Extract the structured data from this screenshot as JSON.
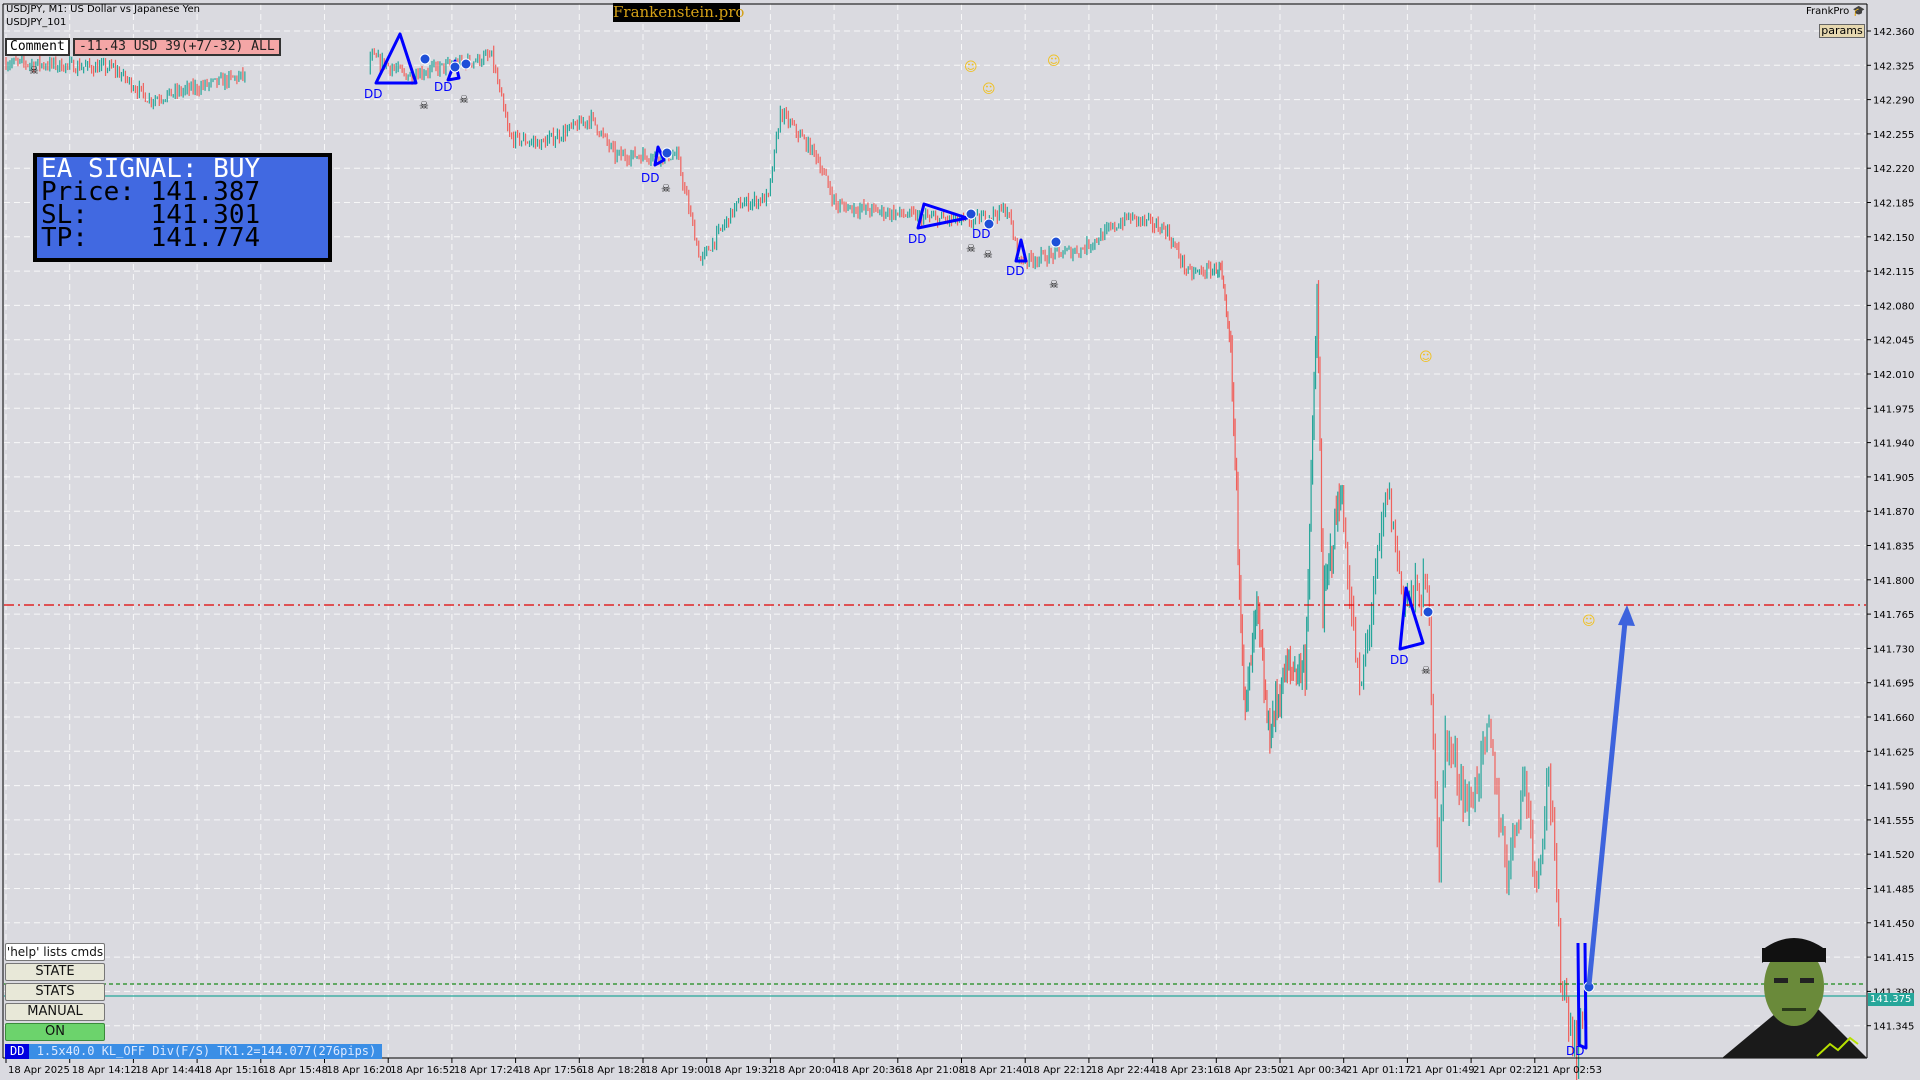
{
  "window": {
    "title": "USDJPY, M1:  US Dollar vs Japanese Yen",
    "indicator": "USDJPY_101"
  },
  "comment": {
    "label": "Comment",
    "pnl": "-11.43 USD 39(+7/-32) ALL"
  },
  "signal": {
    "heading": "EA SIGNAL: BUY",
    "price_line": "Price: 141.387",
    "sl_line": "SL:    141.301",
    "tp_line": "TP:    141.774"
  },
  "brand": {
    "title": "Frankenstein.pro",
    "user": "FrankPro",
    "user_icon": "graduation-cap-icon",
    "params_label": "params"
  },
  "controls": {
    "help": "'help' lists cmds",
    "state": "STATE",
    "stats": "STATS",
    "manual": "MANUAL",
    "on": "ON"
  },
  "status": {
    "tag": "DD",
    "text": "1.5x40.0 KL_OFF Div(F/S) TK1.2=144.077(276pips)"
  },
  "colors": {
    "bull": "#26a69a",
    "bear": "#f0615c",
    "tp_line": "#e00000",
    "entry_line": "#1a8a1a",
    "bid_line": "#26a69a",
    "pattern": "#0000ff",
    "arrow": "#3d63dd",
    "background": "#dadae0"
  },
  "chart_data": {
    "type": "candlestick",
    "symbol": "USDJPY",
    "timeframe": "M1",
    "ylim": [
      141.33,
      142.375
    ],
    "price_ticks": [
      "142.360",
      "142.325",
      "142.290",
      "142.255",
      "142.220",
      "142.185",
      "142.150",
      "142.115",
      "142.080",
      "142.045",
      "142.010",
      "141.975",
      "141.940",
      "141.905",
      "141.870",
      "141.835",
      "141.800",
      "141.765",
      "141.730",
      "141.695",
      "141.660",
      "141.625",
      "141.590",
      "141.555",
      "141.520",
      "141.485",
      "141.450",
      "141.415",
      "141.380",
      "141.345"
    ],
    "time_ticks": [
      "18 Apr 2025",
      "18 Apr 14:12",
      "18 Apr 14:44",
      "18 Apr 15:16",
      "18 Apr 15:48",
      "18 Apr 16:20",
      "18 Apr 16:52",
      "18 Apr 17:24",
      "18 Apr 17:56",
      "18 Apr 18:28",
      "18 Apr 19:00",
      "18 Apr 19:32",
      "18 Apr 20:04",
      "18 Apr 20:36",
      "18 Apr 21:08",
      "18 Apr 21:40",
      "18 Apr 22:12",
      "18 Apr 22:44",
      "18 Apr 23:16",
      "18 Apr 23:50",
      "21 Apr 00:34",
      "21 Apr 01:17",
      "21 Apr 01:49",
      "21 Apr 02:21",
      "21 Apr 02:53"
    ],
    "current_price": "141.375",
    "tp_level": 141.774,
    "entry_level": 141.387,
    "price_path": [
      {
        "t": "18 Apr 13:40",
        "p": 142.328
      },
      {
        "t": "18 Apr 14:34",
        "p": 142.322
      },
      {
        "t": "18 Apr 14:52",
        "p": 142.29
      },
      {
        "t": "18 Apr 15:41",
        "p": 142.315
      },
      {
        "t": "18 Apr 16:43",
        "p": 142.334
      },
      {
        "t": "18 Apr 17:01",
        "p": 142.315
      },
      {
        "t": "18 Apr 17:44",
        "p": 142.334
      },
      {
        "t": "18 Apr 17:53",
        "p": 142.251
      },
      {
        "t": "18 Apr 18:09",
        "p": 142.245
      },
      {
        "t": "18 Apr 18:34",
        "p": 142.271
      },
      {
        "t": "18 Apr 18:46",
        "p": 142.233
      },
      {
        "t": "18 Apr 19:17",
        "p": 142.233
      },
      {
        "t": "18 Apr 19:29",
        "p": 142.125
      },
      {
        "t": "18 Apr 19:47",
        "p": 142.182
      },
      {
        "t": "18 Apr 20:03",
        "p": 142.19
      },
      {
        "t": "18 Apr 20:09",
        "p": 142.277
      },
      {
        "t": "18 Apr 20:27",
        "p": 142.233
      },
      {
        "t": "18 Apr 20:37",
        "p": 142.182
      },
      {
        "t": "18 Apr 21:20",
        "p": 142.17
      },
      {
        "t": "18 Apr 21:44",
        "p": 142.165
      },
      {
        "t": "18 Apr 22:03",
        "p": 142.178
      },
      {
        "t": "18 Apr 22:09",
        "p": 142.125
      },
      {
        "t": "18 Apr 22:40",
        "p": 142.137
      },
      {
        "t": "18 Apr 23:04",
        "p": 142.17
      },
      {
        "t": "18 Apr 23:23",
        "p": 142.158
      },
      {
        "t": "18 Apr 23:35",
        "p": 142.112
      },
      {
        "t": "18 Apr 23:53",
        "p": 142.118
      },
      {
        "t": "21 Apr 00:00",
        "p": 142.03
      },
      {
        "t": "21 Apr 00:10",
        "p": 141.662
      },
      {
        "t": "21 Apr 00:18",
        "p": 141.77
      },
      {
        "t": "21 Apr 00:26",
        "p": 141.643
      },
      {
        "t": "21 Apr 00:38",
        "p": 141.707
      },
      {
        "t": "21 Apr 00:51",
        "p": 141.712
      },
      {
        "t": "21 Apr 00:59",
        "p": 142.087
      },
      {
        "t": "21 Apr 01:03",
        "p": 141.77
      },
      {
        "t": "21 Apr 01:15",
        "p": 141.897
      },
      {
        "t": "21 Apr 01:25",
        "p": 141.681
      },
      {
        "t": "21 Apr 01:39",
        "p": 141.892
      },
      {
        "t": "21 Apr 01:47",
        "p": 141.78
      },
      {
        "t": "21 Apr 01:59",
        "p": 141.79
      },
      {
        "t": "21 Apr 02:05",
        "p": 141.504
      },
      {
        "t": "21 Apr 02:08",
        "p": 141.643
      },
      {
        "t": "21 Apr 02:20",
        "p": 141.567
      },
      {
        "t": "21 Apr 02:30",
        "p": 141.643
      },
      {
        "t": "21 Apr 02:39",
        "p": 141.504
      },
      {
        "t": "21 Apr 02:48",
        "p": 141.6
      },
      {
        "t": "21 Apr 02:54",
        "p": 141.49
      },
      {
        "t": "21 Apr 03:00",
        "p": 141.61
      },
      {
        "t": "21 Apr 03:06",
        "p": 141.402
      },
      {
        "t": "21 Apr 03:14",
        "p": 141.313
      },
      {
        "t": "21 Apr 03:18",
        "p": 141.37
      },
      {
        "t": "21 Apr 03:20",
        "p": 141.387
      }
    ],
    "pattern_label": "DD"
  }
}
